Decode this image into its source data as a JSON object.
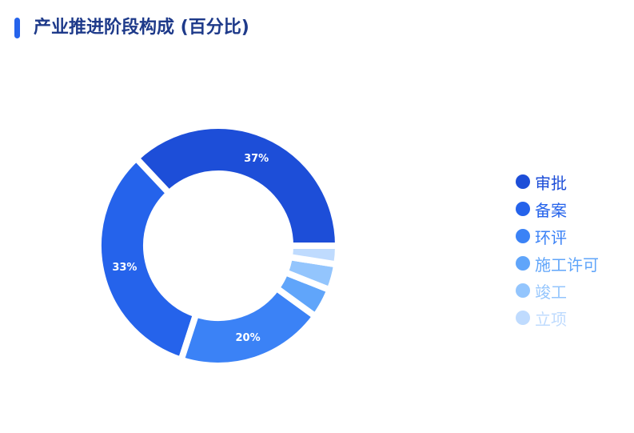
{
  "header": {
    "title": "产业推进阶段构成 (百分比)"
  },
  "chart_data": {
    "type": "pie",
    "donut": true,
    "title": "产业推进阶段构成 (百分比)",
    "categories": [
      "审批",
      "备案",
      "环评",
      "施工许可",
      "竣工",
      "立项"
    ],
    "values": [
      37,
      33,
      20,
      4,
      3.5,
      2.5
    ],
    "labels": [
      "37%",
      "33%",
      "20%",
      "",
      "",
      ""
    ],
    "colors": [
      "#1d4ed8",
      "#2563eb",
      "#3b82f6",
      "#60a5fa",
      "#93c5fd",
      "#bfdbfe"
    ],
    "legend_position": "right"
  }
}
